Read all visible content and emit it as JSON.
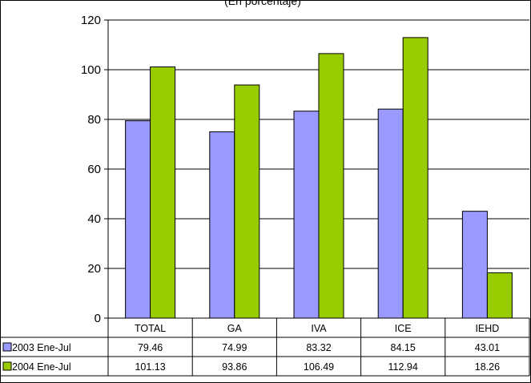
{
  "chart_data": {
    "type": "bar",
    "subtitle": "(En porcentaje)",
    "categories": [
      "TOTAL",
      "GA",
      "IVA",
      "ICE",
      "IEHD"
    ],
    "series": [
      {
        "name": "2003 Ene-Jul",
        "color": "#9999ff",
        "values": [
          79.46,
          74.99,
          83.32,
          84.15,
          43.01
        ],
        "labels": [
          "79.46",
          "74.99",
          "83.32",
          "84.15",
          "43.01"
        ]
      },
      {
        "name": "2004 Ene-Jul",
        "color": "#99cc00",
        "values": [
          101.13,
          93.86,
          106.49,
          112.94,
          18.26
        ],
        "labels": [
          "101.13",
          "93.86",
          "106.49",
          "112.94",
          "18.26"
        ]
      }
    ],
    "ylim": [
      0,
      120
    ],
    "yticks": [
      "0",
      "20",
      "40",
      "60",
      "80",
      "100",
      "120"
    ],
    "grid": true,
    "legend": "data-table-left"
  }
}
